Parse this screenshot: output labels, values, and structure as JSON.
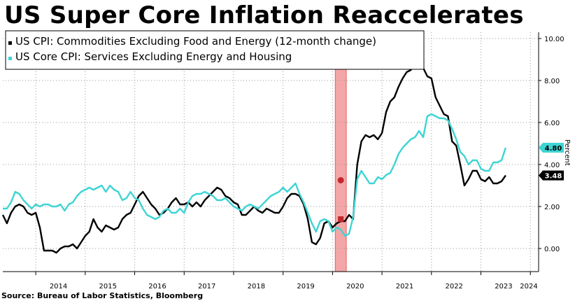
{
  "title": "US Super Core Inflation Reaccelerates",
  "source": "Source: Bureau of Labor Statistics, Bloomberg",
  "chart_data": {
    "type": "line",
    "title": "US Super Core Inflation Reaccelerates",
    "ylabel": "Percent",
    "xlabel": "",
    "ylim": [
      -1.1,
      10.3
    ],
    "xlim": [
      "2013-05",
      "2024-03"
    ],
    "y_ticks": [
      "0.00",
      "2.00",
      "4.00",
      "6.00",
      "8.00",
      "10.00"
    ],
    "x_ticks": [
      "2014",
      "2015",
      "2016",
      "2017",
      "2018",
      "2019",
      "2020",
      "2021",
      "2022",
      "2023",
      "2024"
    ],
    "grid": true,
    "legend_position": "top-left",
    "shaded_period": {
      "start": "2020-02",
      "end": "2020-04",
      "color": "#f4a6a6"
    },
    "series": [
      {
        "name": "US CPI: Commodities Excluding Food and Energy (12-month change)",
        "color": "#000000",
        "last_value_label": "3.48",
        "points": [
          [
            "2013-05",
            1.6
          ],
          [
            "2013-06",
            1.2
          ],
          [
            "2013-07",
            1.7
          ],
          [
            "2013-08",
            2.0
          ],
          [
            "2013-09",
            2.1
          ],
          [
            "2013-10",
            2.0
          ],
          [
            "2013-11",
            1.7
          ],
          [
            "2013-12",
            1.6
          ],
          [
            "2014-01",
            1.7
          ],
          [
            "2014-02",
            1.0
          ],
          [
            "2014-03",
            -0.1
          ],
          [
            "2014-04",
            -0.1
          ],
          [
            "2014-05",
            -0.1
          ],
          [
            "2014-06",
            -0.2
          ],
          [
            "2014-07",
            0.0
          ],
          [
            "2014-08",
            0.1
          ],
          [
            "2014-09",
            0.1
          ],
          [
            "2014-10",
            0.2
          ],
          [
            "2014-11",
            0.0
          ],
          [
            "2014-12",
            0.3
          ],
          [
            "2015-01",
            0.6
          ],
          [
            "2015-02",
            0.8
          ],
          [
            "2015-03",
            1.4
          ],
          [
            "2015-04",
            1.0
          ],
          [
            "2015-05",
            0.8
          ],
          [
            "2015-06",
            1.1
          ],
          [
            "2015-07",
            1.0
          ],
          [
            "2015-08",
            0.9
          ],
          [
            "2015-09",
            1.0
          ],
          [
            "2015-10",
            1.4
          ],
          [
            "2015-11",
            1.6
          ],
          [
            "2015-12",
            1.7
          ],
          [
            "2016-01",
            2.1
          ],
          [
            "2016-02",
            2.5
          ],
          [
            "2016-03",
            2.7
          ],
          [
            "2016-04",
            2.4
          ],
          [
            "2016-05",
            2.1
          ],
          [
            "2016-06",
            1.9
          ],
          [
            "2016-07",
            1.6
          ],
          [
            "2016-08",
            1.7
          ],
          [
            "2016-09",
            1.9
          ],
          [
            "2016-10",
            2.2
          ],
          [
            "2016-11",
            2.4
          ],
          [
            "2016-12",
            2.1
          ],
          [
            "2017-01",
            2.1
          ],
          [
            "2017-02",
            2.2
          ],
          [
            "2017-03",
            2.0
          ],
          [
            "2017-04",
            2.2
          ],
          [
            "2017-05",
            2.0
          ],
          [
            "2017-06",
            2.3
          ],
          [
            "2017-07",
            2.5
          ],
          [
            "2017-08",
            2.7
          ],
          [
            "2017-09",
            2.9
          ],
          [
            "2017-10",
            2.8
          ],
          [
            "2017-11",
            2.5
          ],
          [
            "2017-12",
            2.4
          ],
          [
            "2018-01",
            2.2
          ],
          [
            "2018-02",
            2.1
          ],
          [
            "2018-03",
            1.6
          ],
          [
            "2018-04",
            1.6
          ],
          [
            "2018-05",
            1.8
          ],
          [
            "2018-06",
            2.0
          ],
          [
            "2018-07",
            1.8
          ],
          [
            "2018-08",
            1.7
          ],
          [
            "2018-09",
            1.9
          ],
          [
            "2018-10",
            1.8
          ],
          [
            "2018-11",
            1.7
          ],
          [
            "2018-12",
            1.7
          ],
          [
            "2019-01",
            2.0
          ],
          [
            "2019-02",
            2.4
          ],
          [
            "2019-03",
            2.6
          ],
          [
            "2019-04",
            2.6
          ],
          [
            "2019-05",
            2.5
          ],
          [
            "2019-06",
            2.1
          ],
          [
            "2019-07",
            1.4
          ],
          [
            "2019-08",
            0.3
          ],
          [
            "2019-09",
            0.2
          ],
          [
            "2019-10",
            0.5
          ],
          [
            "2019-11",
            1.2
          ],
          [
            "2019-12",
            1.3
          ],
          [
            "2020-01",
            1.0
          ],
          [
            "2020-02",
            1.2
          ],
          [
            "2020-03",
            1.3
          ],
          [
            "2020-04",
            1.3
          ],
          [
            "2020-05",
            1.6
          ],
          [
            "2020-06",
            1.4
          ],
          [
            "2020-07",
            4.0
          ],
          [
            "2020-08",
            5.1
          ],
          [
            "2020-09",
            5.4
          ],
          [
            "2020-10",
            5.3
          ],
          [
            "2020-11",
            5.4
          ],
          [
            "2020-12",
            5.2
          ],
          [
            "2021-01",
            5.5
          ],
          [
            "2021-02",
            6.5
          ],
          [
            "2021-03",
            7.0
          ],
          [
            "2021-04",
            7.2
          ],
          [
            "2021-05",
            7.7
          ],
          [
            "2021-06",
            8.1
          ],
          [
            "2021-07",
            8.4
          ],
          [
            "2021-08",
            8.5
          ],
          [
            "2021-09",
            8.8
          ],
          [
            "2021-10",
            9.1
          ],
          [
            "2021-11",
            8.6
          ],
          [
            "2021-12",
            8.2
          ],
          [
            "2022-01",
            8.1
          ],
          [
            "2022-02",
            7.2
          ],
          [
            "2022-03",
            6.8
          ],
          [
            "2022-04",
            6.4
          ],
          [
            "2022-05",
            6.3
          ],
          [
            "2022-06",
            5.1
          ],
          [
            "2022-07",
            4.9
          ],
          [
            "2022-08",
            4.0
          ],
          [
            "2022-09",
            3.0
          ],
          [
            "2022-10",
            3.3
          ],
          [
            "2022-11",
            3.7
          ],
          [
            "2022-12",
            3.7
          ],
          [
            "2023-01",
            3.3
          ],
          [
            "2023-02",
            3.2
          ],
          [
            "2023-03",
            3.4
          ],
          [
            "2023-04",
            3.1
          ],
          [
            "2023-05",
            3.1
          ],
          [
            "2023-06",
            3.2
          ],
          [
            "2023-07",
            3.48
          ]
        ]
      },
      {
        "name": "US Core CPI: Services Excluding Energy and Housing",
        "color": "#3ed4d4",
        "last_value_label": "4.80",
        "points": [
          [
            "2013-05",
            1.9
          ],
          [
            "2013-06",
            1.9
          ],
          [
            "2013-07",
            2.2
          ],
          [
            "2013-08",
            2.7
          ],
          [
            "2013-09",
            2.6
          ],
          [
            "2013-10",
            2.3
          ],
          [
            "2013-11",
            2.1
          ],
          [
            "2013-12",
            1.9
          ],
          [
            "2014-01",
            2.1
          ],
          [
            "2014-02",
            2.0
          ],
          [
            "2014-03",
            2.1
          ],
          [
            "2014-04",
            2.1
          ],
          [
            "2014-05",
            2.0
          ],
          [
            "2014-06",
            2.0
          ],
          [
            "2014-07",
            2.1
          ],
          [
            "2014-08",
            1.8
          ],
          [
            "2014-09",
            2.1
          ],
          [
            "2014-10",
            2.2
          ],
          [
            "2014-11",
            2.5
          ],
          [
            "2014-12",
            2.7
          ],
          [
            "2015-01",
            2.8
          ],
          [
            "2015-02",
            2.9
          ],
          [
            "2015-03",
            2.8
          ],
          [
            "2015-04",
            2.9
          ],
          [
            "2015-05",
            3.0
          ],
          [
            "2015-06",
            2.7
          ],
          [
            "2015-07",
            3.0
          ],
          [
            "2015-08",
            2.8
          ],
          [
            "2015-09",
            2.7
          ],
          [
            "2015-10",
            2.3
          ],
          [
            "2015-11",
            2.4
          ],
          [
            "2015-12",
            2.7
          ],
          [
            "2016-01",
            2.4
          ],
          [
            "2016-02",
            2.3
          ],
          [
            "2016-03",
            1.9
          ],
          [
            "2016-04",
            1.6
          ],
          [
            "2016-05",
            1.5
          ],
          [
            "2016-06",
            1.4
          ],
          [
            "2016-07",
            1.5
          ],
          [
            "2016-08",
            1.8
          ],
          [
            "2016-09",
            1.9
          ],
          [
            "2016-10",
            1.7
          ],
          [
            "2016-11",
            1.7
          ],
          [
            "2016-12",
            1.9
          ],
          [
            "2017-01",
            1.7
          ],
          [
            "2017-02",
            2.2
          ],
          [
            "2017-03",
            2.5
          ],
          [
            "2017-04",
            2.6
          ],
          [
            "2017-05",
            2.6
          ],
          [
            "2017-06",
            2.7
          ],
          [
            "2017-07",
            2.6
          ],
          [
            "2017-08",
            2.5
          ],
          [
            "2017-09",
            2.3
          ],
          [
            "2017-10",
            2.3
          ],
          [
            "2017-11",
            2.4
          ],
          [
            "2017-12",
            2.2
          ],
          [
            "2018-01",
            2.0
          ],
          [
            "2018-02",
            1.9
          ],
          [
            "2018-03",
            1.8
          ],
          [
            "2018-04",
            2.0
          ],
          [
            "2018-05",
            2.1
          ],
          [
            "2018-06",
            2.0
          ],
          [
            "2018-07",
            1.9
          ],
          [
            "2018-08",
            2.1
          ],
          [
            "2018-09",
            2.3
          ],
          [
            "2018-10",
            2.5
          ],
          [
            "2018-11",
            2.6
          ],
          [
            "2018-12",
            2.7
          ],
          [
            "2019-01",
            2.9
          ],
          [
            "2019-02",
            2.7
          ],
          [
            "2019-03",
            2.9
          ],
          [
            "2019-04",
            3.1
          ],
          [
            "2019-05",
            2.6
          ],
          [
            "2019-06",
            2.2
          ],
          [
            "2019-07",
            1.7
          ],
          [
            "2019-08",
            1.2
          ],
          [
            "2019-09",
            0.8
          ],
          [
            "2019-10",
            1.3
          ],
          [
            "2019-11",
            1.4
          ],
          [
            "2019-12",
            1.3
          ],
          [
            "2020-01",
            0.8
          ],
          [
            "2020-02",
            1.0
          ],
          [
            "2020-03",
            0.9
          ],
          [
            "2020-04",
            0.6
          ],
          [
            "2020-05",
            0.7
          ],
          [
            "2020-06",
            1.5
          ],
          [
            "2020-07",
            3.3
          ],
          [
            "2020-08",
            3.7
          ],
          [
            "2020-09",
            3.4
          ],
          [
            "2020-10",
            3.1
          ],
          [
            "2020-11",
            3.1
          ],
          [
            "2020-12",
            3.4
          ],
          [
            "2021-01",
            3.3
          ],
          [
            "2021-02",
            3.5
          ],
          [
            "2021-03",
            3.6
          ],
          [
            "2021-04",
            4.0
          ],
          [
            "2021-05",
            4.5
          ],
          [
            "2021-06",
            4.8
          ],
          [
            "2021-07",
            5.0
          ],
          [
            "2021-08",
            5.2
          ],
          [
            "2021-09",
            5.3
          ],
          [
            "2021-10",
            5.6
          ],
          [
            "2021-11",
            5.3
          ],
          [
            "2021-12",
            6.3
          ],
          [
            "2022-01",
            6.4
          ],
          [
            "2022-02",
            6.3
          ],
          [
            "2022-03",
            6.2
          ],
          [
            "2022-04",
            6.2
          ],
          [
            "2022-05",
            6.1
          ],
          [
            "2022-06",
            5.7
          ],
          [
            "2022-07",
            5.2
          ],
          [
            "2022-08",
            4.6
          ],
          [
            "2022-09",
            4.4
          ],
          [
            "2022-10",
            4.0
          ],
          [
            "2022-11",
            4.2
          ],
          [
            "2022-12",
            4.2
          ],
          [
            "2023-01",
            3.8
          ],
          [
            "2023-02",
            3.7
          ],
          [
            "2023-03",
            3.7
          ],
          [
            "2023-04",
            4.1
          ],
          [
            "2023-05",
            4.1
          ],
          [
            "2023-06",
            4.2
          ],
          [
            "2023-07",
            4.8
          ]
        ]
      }
    ]
  }
}
